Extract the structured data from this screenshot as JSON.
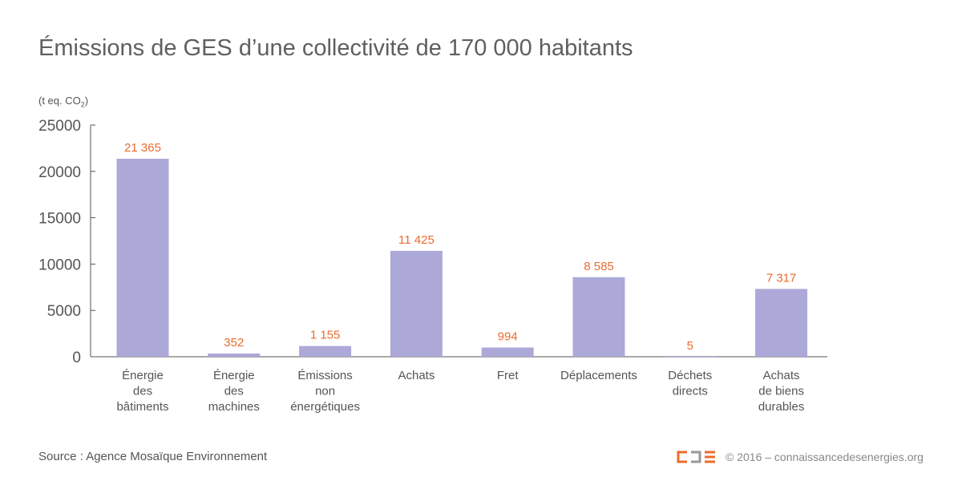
{
  "chart_data": {
    "type": "bar",
    "title": "Émissions de GES d’une collectivité de 170 000 habitants",
    "ylabel": "(t eq. CO",
    "ylabel_sub": "2",
    "ylabel_end": ")",
    "ylim": [
      0,
      25000
    ],
    "yticks": [
      0,
      5000,
      10000,
      15000,
      20000,
      25000
    ],
    "ytick_labels": [
      "0",
      "5000",
      "10000",
      "15000",
      "20000",
      "25000"
    ],
    "categories": [
      [
        "Énergie",
        "des",
        "bâtiments"
      ],
      [
        "Énergie",
        "des",
        "machines"
      ],
      [
        "Émissions",
        "non",
        "énergétiques"
      ],
      [
        "Achats"
      ],
      [
        "Fret"
      ],
      [
        "Déplacements"
      ],
      [
        "Déchets",
        "directs"
      ],
      [
        "Achats",
        "de biens",
        "durables"
      ]
    ],
    "values": [
      21365,
      352,
      1155,
      11425,
      994,
      8585,
      5,
      7317
    ],
    "value_labels": [
      "21 365",
      "352",
      "1 155",
      "11 425",
      "994",
      "8 585",
      "5",
      "7 317"
    ],
    "bar_color": "#aca8d8",
    "label_color": "#ec6b2d"
  },
  "footer": {
    "source": "Source : Agence Mosaïque Environnement",
    "copyright": "© 2016 – connaissancedesenergies.org",
    "logo": "CDE"
  }
}
